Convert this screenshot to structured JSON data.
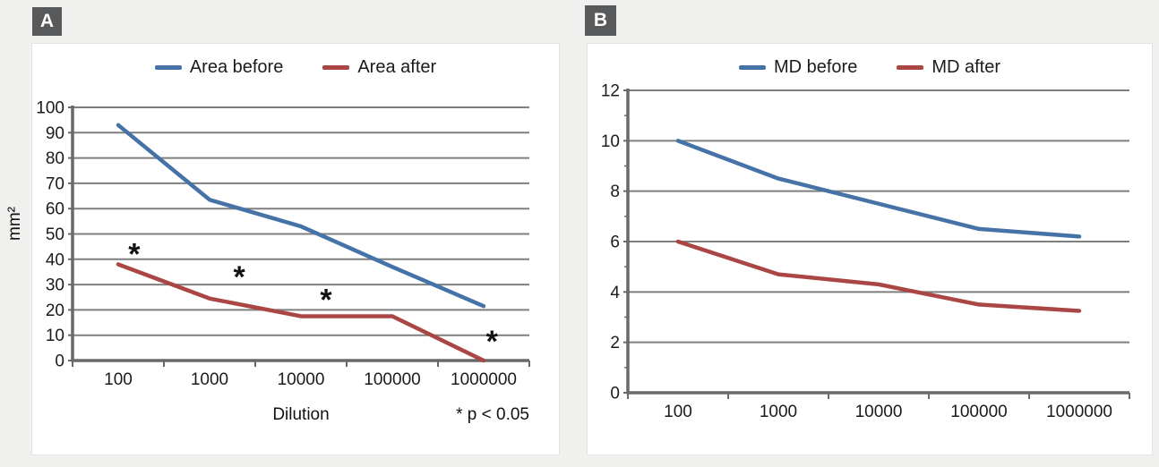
{
  "page": {
    "background_color": "#f0f0ee"
  },
  "panels": [
    {
      "badge": "A",
      "legend": [
        {
          "label": "Area before",
          "color": "#4572A7"
        },
        {
          "label": "Area after",
          "color": "#AA4643"
        }
      ]
    },
    {
      "badge": "B",
      "legend": [
        {
          "label": "MD before",
          "color": "#4572A7"
        },
        {
          "label": "MD after",
          "color": "#AA4643"
        }
      ]
    }
  ],
  "chart_data": [
    {
      "type": "line",
      "panel": "A",
      "categories": [
        "100",
        "1000",
        "10000",
        "100000",
        "1000000"
      ],
      "series": [
        {
          "name": "Area before",
          "color": "#4572A7",
          "values": [
            93,
            63.5,
            53,
            37,
            21.5
          ]
        },
        {
          "name": "Area after",
          "color": "#AA4643",
          "values": [
            38,
            24.5,
            17.5,
            17.5,
            0
          ]
        }
      ],
      "xlabel": "Dilution",
      "ylabel": "mm²",
      "ylim": [
        0,
        100
      ],
      "ytick_step": 10,
      "grid": true,
      "legend_position": "top-center",
      "annotations": {
        "significance_note": "* p < 0.05",
        "asterisks": [
          {
            "x_frac": 0.135,
            "value": 44
          },
          {
            "x_frac": 0.365,
            "value": 35
          },
          {
            "x_frac": 0.555,
            "value": 26
          },
          {
            "x_frac": 0.918,
            "value": 9.5
          }
        ]
      }
    },
    {
      "type": "line",
      "panel": "B",
      "categories": [
        "100",
        "1000",
        "10000",
        "100000",
        "1000000"
      ],
      "series": [
        {
          "name": "MD before",
          "color": "#4572A7",
          "values": [
            10,
            8.5,
            7.5,
            6.5,
            6.2
          ]
        },
        {
          "name": "MD after",
          "color": "#AA4643",
          "values": [
            6,
            4.7,
            4.3,
            3.5,
            3.25
          ]
        }
      ],
      "xlabel": "",
      "ylabel": "",
      "ylim": [
        0,
        12
      ],
      "ytick_step": 2,
      "minor_ytick_step": 1,
      "grid": true,
      "legend_position": "top-center"
    }
  ],
  "styles": {
    "line_blue": "#4572A7",
    "line_red": "#AA4643",
    "gridline_color": "#7f7f7f",
    "axis_color": "#696969",
    "text_color": "#1b1b1b",
    "badge_background": "#58595B",
    "badge_text_color": "#ffffff",
    "panel_background": "#ffffff"
  }
}
